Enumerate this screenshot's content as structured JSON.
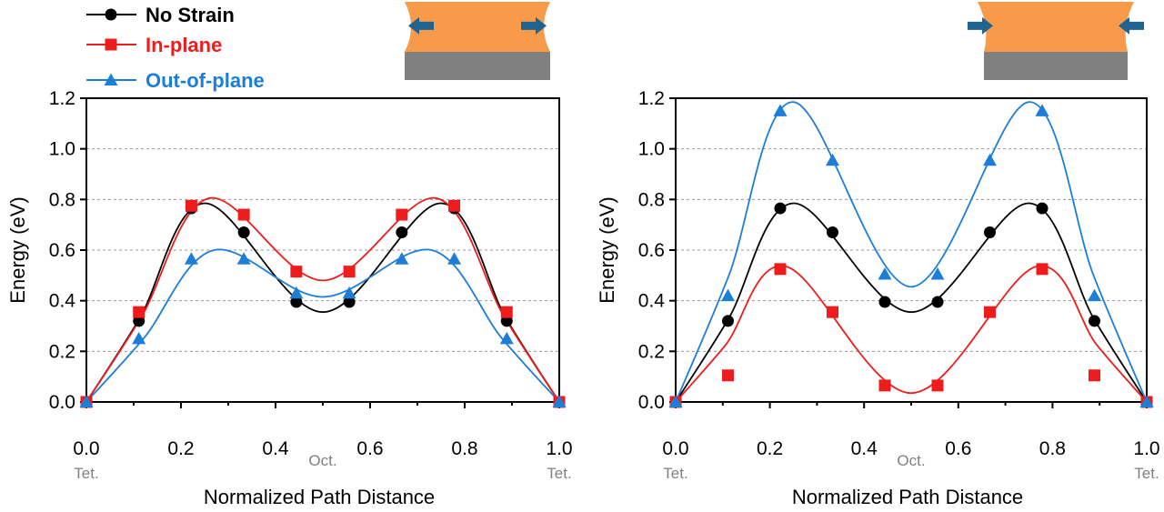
{
  "legend": {
    "items": [
      {
        "label": "No Strain",
        "color": "#000000",
        "marker": "circle"
      },
      {
        "label": "In-plane",
        "color": "#ee1c1c",
        "marker": "square"
      },
      {
        "label": "Out-of-plane",
        "color": "#1c7ed6",
        "marker": "triangle"
      }
    ]
  },
  "icons": {
    "left": {
      "name": "tensile-strain-icon",
      "film_color": "#f79a4a",
      "substrate_color": "#808080",
      "arrow_color": "#1f6391"
    },
    "right": {
      "name": "compressive-strain-icon",
      "film_color": "#f79a4a",
      "substrate_color": "#808080",
      "arrow_color": "#1f6391"
    }
  },
  "chart_data": [
    {
      "type": "line",
      "xlabel": "Normalized Path Distance",
      "ylabel": "Energy  (eV)",
      "xlim": [
        0,
        1
      ],
      "ylim": [
        0,
        1.2
      ],
      "xticks": [
        "0.0",
        "0.2",
        "0.4",
        "0.6",
        "0.8",
        "1.0"
      ],
      "yticks": [
        "0.0",
        "0.2",
        "0.4",
        "0.6",
        "0.8",
        "1.0",
        "1.2"
      ],
      "grid": "horizontal dashed",
      "annotations": [
        {
          "text": "Tet.",
          "x": 0
        },
        {
          "text": "Oct.",
          "x": 0.5
        },
        {
          "text": "Tet.",
          "x": 1
        }
      ],
      "x": [
        0,
        0.111,
        0.222,
        0.333,
        0.444,
        0.556,
        0.667,
        0.778,
        0.889,
        1
      ],
      "series": [
        {
          "name": "No Strain",
          "color": "#000000",
          "marker": "circle",
          "values": [
            0,
            0.32,
            0.765,
            0.67,
            0.395,
            0.395,
            0.67,
            0.765,
            0.32,
            0
          ],
          "curve": {
            "peak": 0.785,
            "peak_x": 0.25,
            "min": 0.355
          }
        },
        {
          "name": "In-plane",
          "color": "#ee1c1c",
          "marker": "square",
          "values": [
            0,
            0.355,
            0.775,
            0.74,
            0.515,
            0.515,
            0.74,
            0.775,
            0.355,
            0
          ],
          "curve": {
            "peak": 0.805,
            "peak_x": 0.26,
            "min": 0.48
          }
        },
        {
          "name": "Out-of-plane",
          "color": "#1c7ed6",
          "marker": "triangle",
          "values": [
            0,
            0.25,
            0.565,
            0.565,
            0.43,
            0.43,
            0.565,
            0.565,
            0.25,
            0
          ],
          "curve": {
            "peak": 0.6,
            "peak_x": 0.27,
            "min": 0.415
          }
        }
      ]
    },
    {
      "type": "line",
      "xlabel": "Normalized Path Distance",
      "ylabel": "Energy  (eV)",
      "xlim": [
        0,
        1
      ],
      "ylim": [
        0,
        1.2
      ],
      "xticks": [
        "0.0",
        "0.2",
        "0.4",
        "0.6",
        "0.8",
        "1.0"
      ],
      "yticks": [
        "0.0",
        "0.2",
        "0.4",
        "0.6",
        "0.8",
        "1.0",
        "1.2"
      ],
      "grid": "horizontal dashed",
      "annotations": [
        {
          "text": "Tet.",
          "x": 0
        },
        {
          "text": "Oct.",
          "x": 0.5
        },
        {
          "text": "Tet.",
          "x": 1
        }
      ],
      "x": [
        0,
        0.111,
        0.222,
        0.333,
        0.444,
        0.556,
        0.667,
        0.778,
        0.889,
        1
      ],
      "series": [
        {
          "name": "No Strain",
          "color": "#000000",
          "marker": "circle",
          "values": [
            0,
            0.32,
            0.765,
            0.67,
            0.395,
            0.395,
            0.67,
            0.765,
            0.32,
            0
          ],
          "curve": {
            "peak": 0.785,
            "peak_x": 0.25,
            "min": 0.355
          }
        },
        {
          "name": "In-plane",
          "color": "#ee1c1c",
          "marker": "square",
          "values": [
            0,
            0.105,
            0.525,
            0.355,
            0.065,
            0.065,
            0.355,
            0.525,
            0.105,
            0
          ],
          "curve": {
            "peak": 0.535,
            "peak_x": 0.235,
            "min": 0.035
          }
        },
        {
          "name": "Out-of-plane",
          "color": "#1c7ed6",
          "marker": "triangle",
          "values": [
            0,
            0.42,
            1.15,
            0.955,
            0.505,
            0.505,
            0.955,
            1.15,
            0.42,
            0
          ],
          "curve": {
            "peak": 1.185,
            "peak_x": 0.25,
            "min": 0.455
          }
        }
      ]
    }
  ]
}
